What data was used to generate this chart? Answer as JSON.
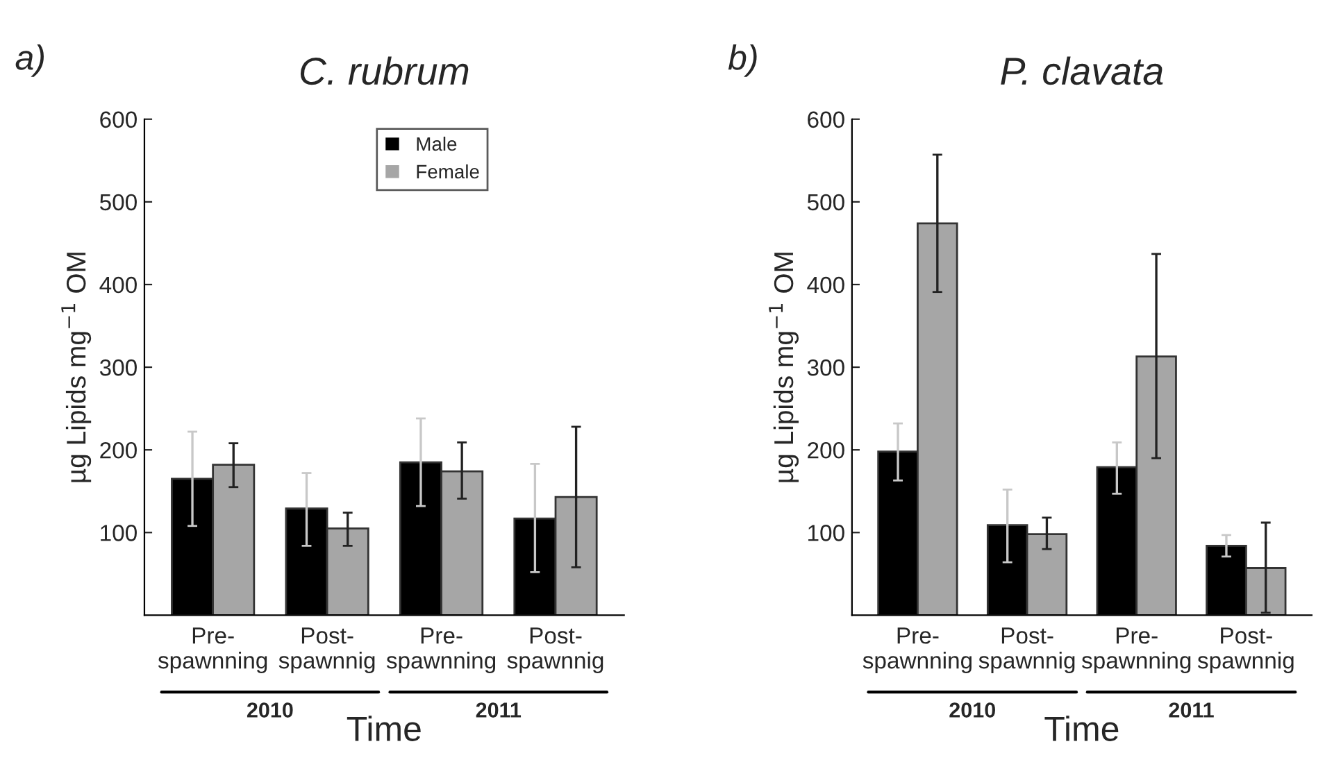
{
  "chart_data": [
    {
      "type": "bar",
      "title": "C. rubrum",
      "ylabel": "µg Lipids mg$^{−1}$ OM",
      "xlabel": "Time",
      "annotations": [
        "a)",
        "2010",
        "2011"
      ],
      "categories": [
        "Pre-\nspawnning",
        "Post-\nspawnnig",
        "Pre-\nspawnning",
        "Post-\nspawnnig"
      ],
      "series": [
        {
          "name": "Male",
          "color": "#000000",
          "values": [
            165,
            129,
            185,
            117
          ],
          "errors": [
            [
              108,
              222
            ],
            [
              84,
              172
            ],
            [
              132,
              238
            ],
            [
              52,
              183
            ]
          ]
        },
        {
          "name": "Female",
          "color": "#a6a6a6",
          "values": [
            182,
            105,
            174,
            143
          ],
          "errors": [
            [
              155,
              208
            ],
            [
              84,
              124
            ],
            [
              141,
              209
            ],
            [
              58,
              228
            ]
          ]
        }
      ],
      "ylim": [
        0,
        600
      ],
      "yticks": [
        100,
        200,
        300,
        400,
        500,
        600
      ],
      "grid": false,
      "legend": "top"
    },
    {
      "type": "bar",
      "title": "P. clavata",
      "ylabel": "µg Lipids mg$^{−1}$ OM",
      "xlabel": "Time",
      "annotations": [
        "b)",
        "2010",
        "2011"
      ],
      "categories": [
        "Pre-\nspawnning",
        "Post-\nspawnnig",
        "Pre-\nspawnning",
        "Post-\nspawnnig"
      ],
      "series": [
        {
          "color": "#000000",
          "values": [
            198,
            109,
            179,
            84
          ],
          "errors": [
            [
              163,
              232
            ],
            [
              64,
              152
            ],
            [
              147,
              209
            ],
            [
              71,
              97
            ]
          ]
        },
        {
          "color": "#a6a6a6",
          "values": [
            474,
            98,
            313,
            57
          ],
          "errors": [
            [
              391,
              557
            ],
            [
              80,
              118
            ],
            [
              190,
              437
            ],
            [
              3,
              112
            ]
          ]
        }
      ],
      "ylim": [
        0,
        600
      ],
      "yticks": [
        100,
        200,
        300,
        400,
        500,
        600
      ],
      "grid": false,
      "legend": false
    }
  ]
}
